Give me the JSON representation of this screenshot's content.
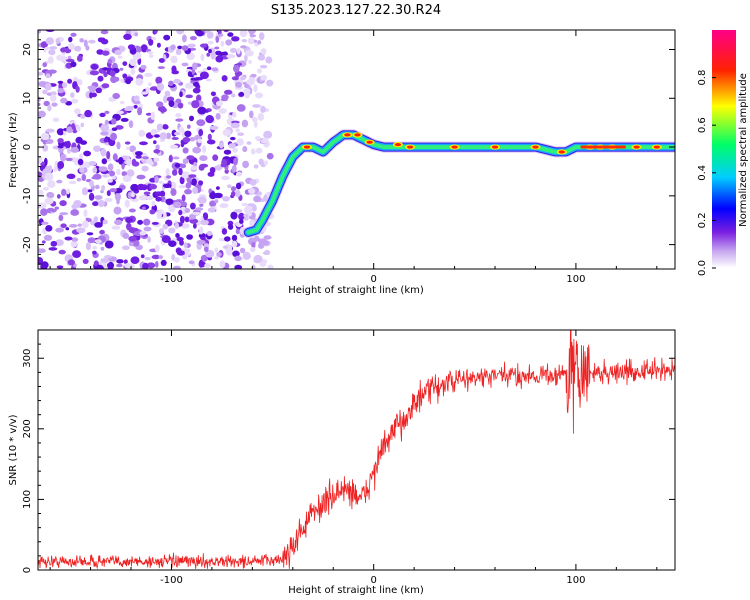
{
  "title": "S135.2023.127.22.30.R24",
  "chart_data": [
    {
      "type": "heatmap",
      "xlabel": "Height of straight line (km)",
      "ylabel": "Frequency (Hz)",
      "xlim": [
        -166,
        149
      ],
      "ylim": [
        -25,
        24
      ],
      "x_ticks": [
        -100,
        0,
        100
      ],
      "y_ticks": [
        -20,
        -10,
        0,
        10,
        20
      ],
      "colorbar": {
        "label": "Normalized spectral amplitude",
        "range": [
          0,
          1
        ],
        "ticks": [
          "0.0",
          "0.2",
          "0.4",
          "0.6",
          "0.8"
        ],
        "colors": [
          "#ffffff",
          "#6a00e0",
          "#0000ff",
          "#00ccff",
          "#00ff66",
          "#ffff00",
          "#ff0000",
          "#ff0080"
        ]
      },
      "noise_region_x": [
        -166,
        -55
      ],
      "ridge": {
        "x": [
          -62,
          -58,
          -55,
          -50,
          -45,
          -40,
          -35,
          -30,
          -25,
          -20,
          -15,
          -10,
          -5,
          0,
          5,
          10,
          20,
          30,
          40,
          50,
          60,
          70,
          80,
          90,
          95,
          100,
          110,
          120,
          130,
          140,
          149
        ],
        "y": [
          -17.5,
          -17,
          -15,
          -11,
          -6,
          -2,
          0,
          0,
          -1,
          1,
          2.5,
          2.5,
          1.5,
          0.5,
          0,
          0,
          0,
          0,
          0,
          0,
          0,
          0,
          0,
          -1,
          -1,
          0,
          0,
          0,
          0,
          0,
          0
        ]
      }
    },
    {
      "type": "line",
      "xlabel": "Height of straight line (km)",
      "ylabel": "SNR (10 * v/v)",
      "xlim": [
        -166,
        149
      ],
      "ylim": [
        0,
        340
      ],
      "x_ticks": [
        -100,
        0,
        100
      ],
      "y_ticks": [
        0,
        100,
        200,
        300
      ],
      "color": "#ee2222",
      "trend": {
        "x": [
          -166,
          -60,
          -45,
          -40,
          -35,
          -30,
          -25,
          -20,
          -15,
          -10,
          -5,
          0,
          5,
          10,
          15,
          20,
          25,
          30,
          40,
          50,
          60,
          70,
          80,
          90,
          100,
          110,
          120,
          130,
          140,
          149
        ],
        "y": [
          12,
          12,
          15,
          35,
          60,
          80,
          95,
          105,
          115,
          110,
          100,
          140,
          175,
          195,
          215,
          235,
          248,
          258,
          268,
          272,
          274,
          275,
          276,
          277,
          278,
          279,
          280,
          281,
          282,
          285
        ]
      },
      "spike_region_x": [
        95,
        107
      ]
    }
  ]
}
